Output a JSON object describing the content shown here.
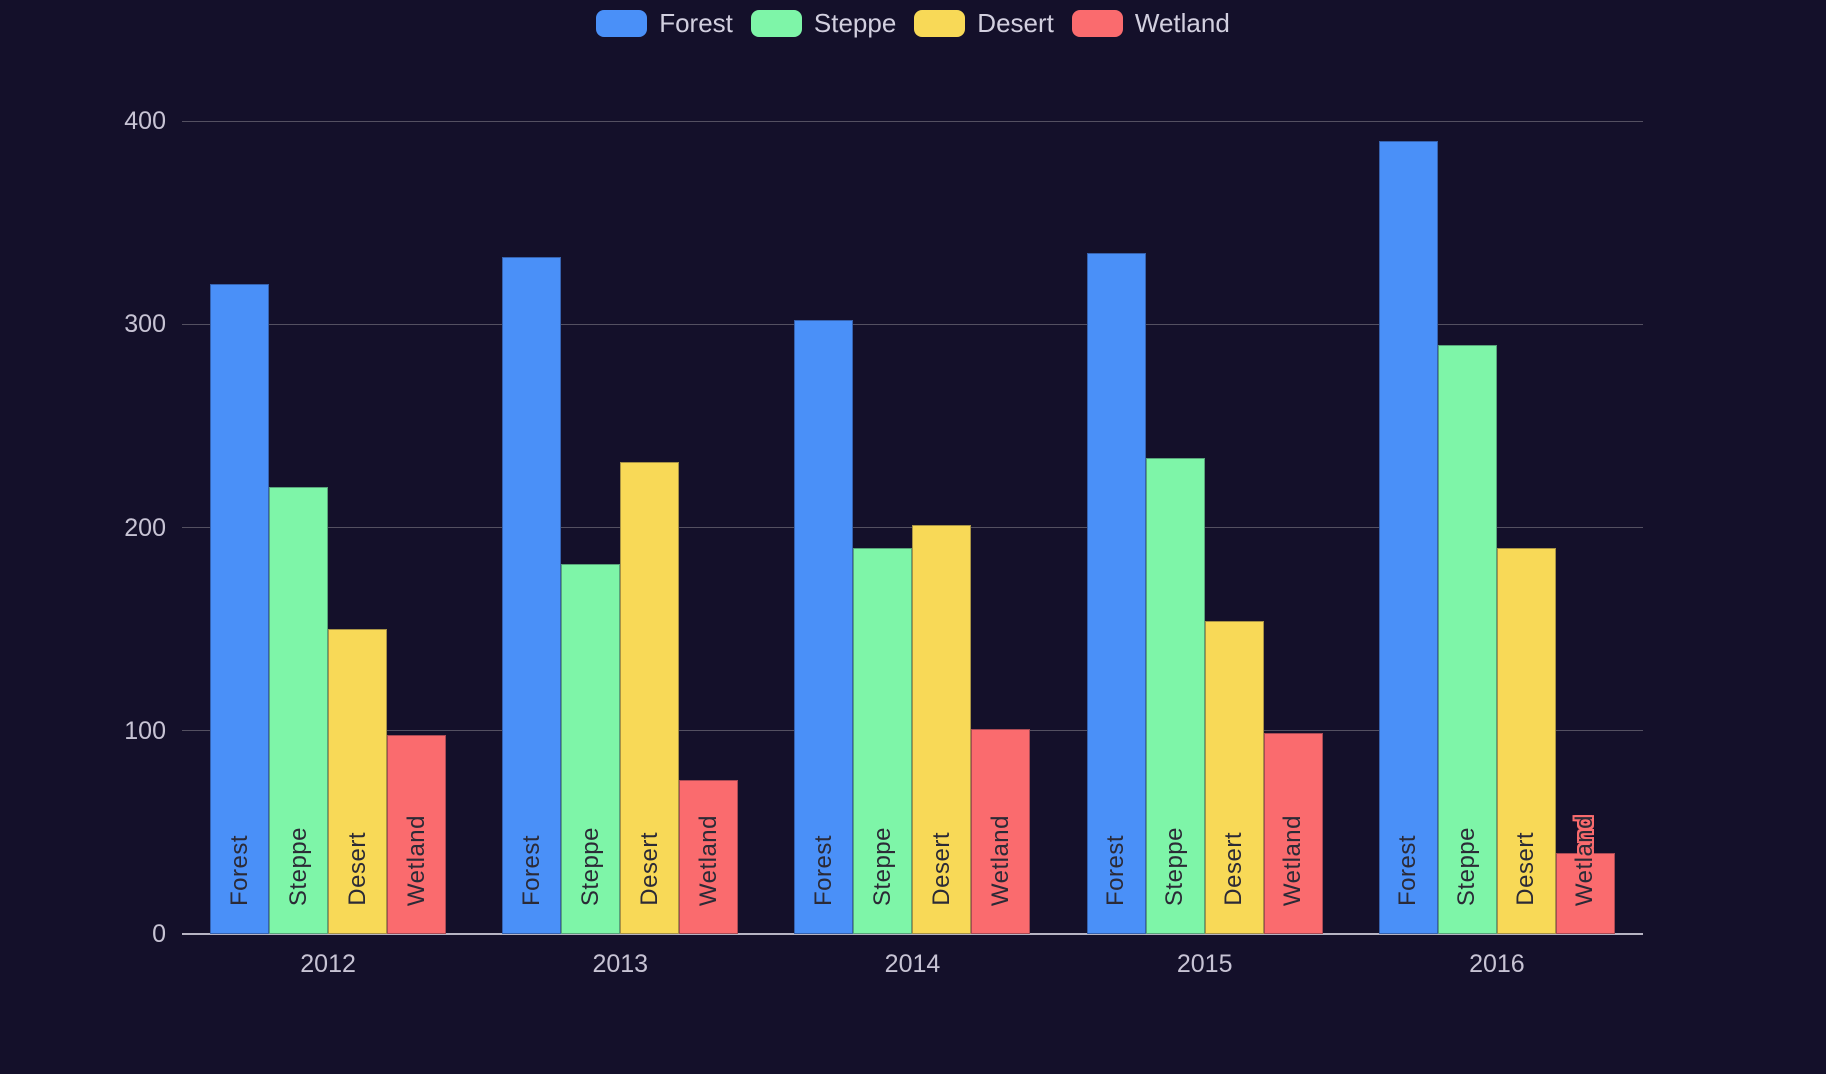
{
  "chart_data": {
    "type": "bar",
    "title": "",
    "xlabel": "",
    "ylabel": "",
    "categories": [
      "2012",
      "2013",
      "2014",
      "2015",
      "2016"
    ],
    "series": [
      {
        "name": "Forest",
        "color": "#4a90f8",
        "values": [
          320,
          333,
          302,
          335,
          390
        ]
      },
      {
        "name": "Steppe",
        "color": "#7ef5a8",
        "values": [
          220,
          182,
          190,
          234,
          290
        ]
      },
      {
        "name": "Desert",
        "color": "#f8d957",
        "values": [
          150,
          232,
          201,
          154,
          190
        ]
      },
      {
        "name": "Wetland",
        "color": "#fa6b6e",
        "values": [
          98,
          76,
          101,
          99,
          40
        ]
      }
    ],
    "ylim": [
      0,
      400
    ],
    "yticks": [
      0,
      100,
      200,
      300,
      400
    ],
    "grid": true,
    "legend_position": "top",
    "bar_label_source": "series name rendered vertically inside each bar"
  },
  "legend": {
    "items": [
      "Forest",
      "Steppe",
      "Desert",
      "Wetland"
    ]
  },
  "colors": {
    "background": "#14102a",
    "gridline": "#545061",
    "axis_line": "#b7b4c3",
    "tick_label": "#c7c3d4",
    "legend_label": "#d2cfdf",
    "bar_inner_label": "#2b2a36"
  }
}
